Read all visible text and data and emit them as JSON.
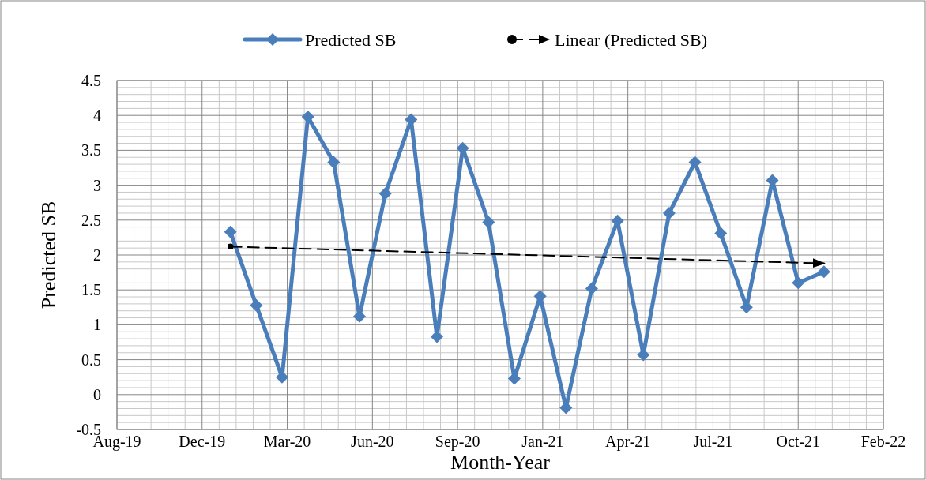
{
  "chart_data": {
    "type": "line",
    "xlabel": "Month-Year",
    "ylabel": "Predicted SB",
    "x": [
      "2020-01-10",
      "2020-02-09",
      "2020-03-10",
      "2020-04-09",
      "2020-05-09",
      "2020-06-08",
      "2020-07-08",
      "2020-08-07",
      "2020-09-06",
      "2020-10-06",
      "2020-11-05",
      "2020-12-05",
      "2021-01-04",
      "2021-02-03",
      "2021-03-05",
      "2021-04-04",
      "2021-05-04",
      "2021-06-03",
      "2021-07-03",
      "2021-08-02",
      "2021-09-01",
      "2021-10-01",
      "2021-10-31",
      "2021-11-30"
    ],
    "series": [
      {
        "name": "Predicted SB",
        "color": "#4a7ebb",
        "marker": "diamond",
        "values": [
          2.33,
          1.28,
          0.25,
          3.98,
          3.33,
          1.12,
          2.88,
          3.94,
          0.83,
          3.53,
          2.47,
          0.23,
          1.41,
          -0.19,
          1.52,
          2.49,
          0.57,
          2.6,
          3.33,
          2.31,
          1.25,
          3.07,
          1.6,
          1.76
        ]
      },
      {
        "name": "Linear (Predicted SB)",
        "type": "line",
        "color": "#000000",
        "line_style": "dashed",
        "marker": "none",
        "x": [
          "2020-01-10",
          "2021-11-30"
        ],
        "values": [
          2.12,
          1.88
        ]
      }
    ],
    "xlim": [
      "2019-08-31",
      "2022-02-07"
    ],
    "xticks": [
      {
        "value": "2019-08-31",
        "label": "Aug-19"
      },
      {
        "value": "2019-12-08",
        "label": "Dec-19"
      },
      {
        "value": "2020-03-16",
        "label": "Mar-20"
      },
      {
        "value": "2020-06-23",
        "label": "Jun-20"
      },
      {
        "value": "2020-09-30",
        "label": "Sep-20"
      },
      {
        "value": "2021-01-07",
        "label": "Jan-21"
      },
      {
        "value": "2021-04-16",
        "label": "Apr-21"
      },
      {
        "value": "2021-07-24",
        "label": "Jul-21"
      },
      {
        "value": "2021-10-31",
        "label": "Oct-21"
      },
      {
        "value": "2022-02-07",
        "label": "Feb-22"
      }
    ],
    "ylim": [
      -0.5,
      4.5
    ],
    "yticks": [
      -0.5,
      0,
      0.5,
      1,
      1.5,
      2,
      2.5,
      3,
      3.5,
      4,
      4.5
    ],
    "grid": true,
    "legend": "top"
  }
}
